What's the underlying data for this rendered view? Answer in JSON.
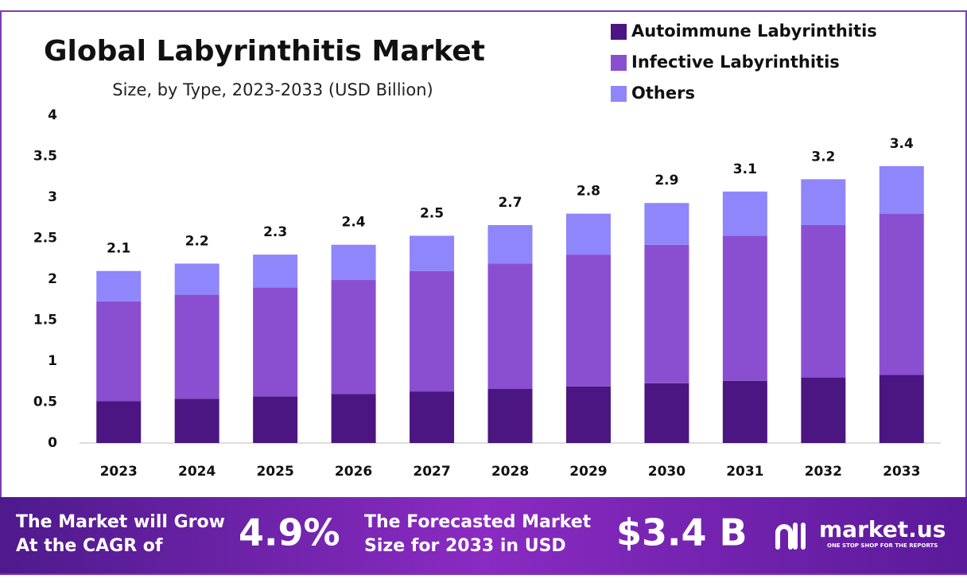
{
  "chart_data": {
    "type": "stacked_bar",
    "title": "Global Labyrinthitis Market",
    "subtitle": "Size, by Type, 2023-2033 (USD Billion)",
    "categories": [
      "2023",
      "2024",
      "2025",
      "2026",
      "2027",
      "2028",
      "2029",
      "2030",
      "2031",
      "2032",
      "2033"
    ],
    "series": [
      {
        "name": "Autoimmune Labyrinthitis",
        "color": "#4b1681",
        "values": [
          0.51,
          0.54,
          0.57,
          0.6,
          0.63,
          0.66,
          0.69,
          0.73,
          0.76,
          0.8,
          0.83
        ]
      },
      {
        "name": "Infective Labyrinthitis",
        "color": "#8a4fd0",
        "values": [
          1.22,
          1.27,
          1.33,
          1.39,
          1.47,
          1.53,
          1.61,
          1.69,
          1.77,
          1.86,
          1.97
        ]
      },
      {
        "name": "Others",
        "color": "#8f86fb",
        "values": [
          0.37,
          0.38,
          0.4,
          0.43,
          0.43,
          0.47,
          0.5,
          0.51,
          0.54,
          0.56,
          0.58
        ]
      }
    ],
    "totals": [
      2.1,
      2.2,
      2.3,
      2.4,
      2.5,
      2.7,
      2.8,
      2.9,
      3.1,
      3.2,
      3.4
    ],
    "ylim": [
      0,
      4
    ],
    "yticks": [
      0,
      0.5,
      1,
      1.5,
      2,
      2.5,
      3,
      3.5,
      4
    ],
    "grid": false,
    "legend": "top-right"
  },
  "footer": {
    "cagr_text": [
      "The Market will Grow",
      "At the CAGR of"
    ],
    "cagr_value": "4.9%",
    "forecast_text": [
      "The Forecasted Market",
      "Size for 2033 in USD"
    ],
    "forecast_value": "$3.4 B",
    "brand": "market.us",
    "tagline": "ONE STOP SHOP FOR THE REPORTS"
  }
}
